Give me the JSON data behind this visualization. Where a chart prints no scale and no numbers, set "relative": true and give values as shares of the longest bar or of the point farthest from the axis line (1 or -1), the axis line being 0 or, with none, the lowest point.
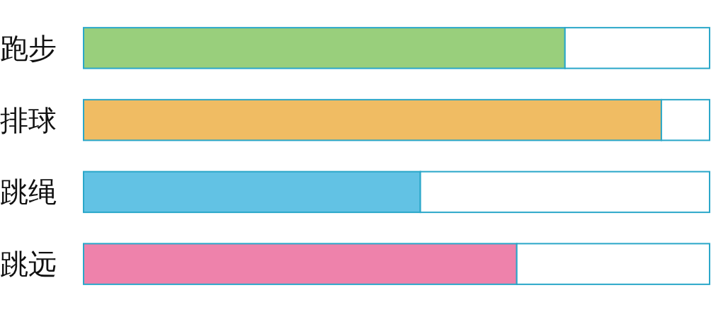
{
  "chart_data": {
    "type": "bar",
    "orientation": "horizontal",
    "stacked": true,
    "relative": true,
    "categories": [
      "跑步",
      "排球",
      "跳绳",
      "跳远"
    ],
    "series": [
      {
        "colors": [
          "#99cf7c",
          "#f0bc63",
          "#62c2e4",
          "#ee82ab"
        ],
        "values": [
          0.769,
          0.923,
          0.538,
          0.692
        ]
      },
      {
        "color": "#ffffff",
        "values": [
          0.231,
          0.077,
          0.462,
          0.308
        ]
      }
    ]
  }
}
